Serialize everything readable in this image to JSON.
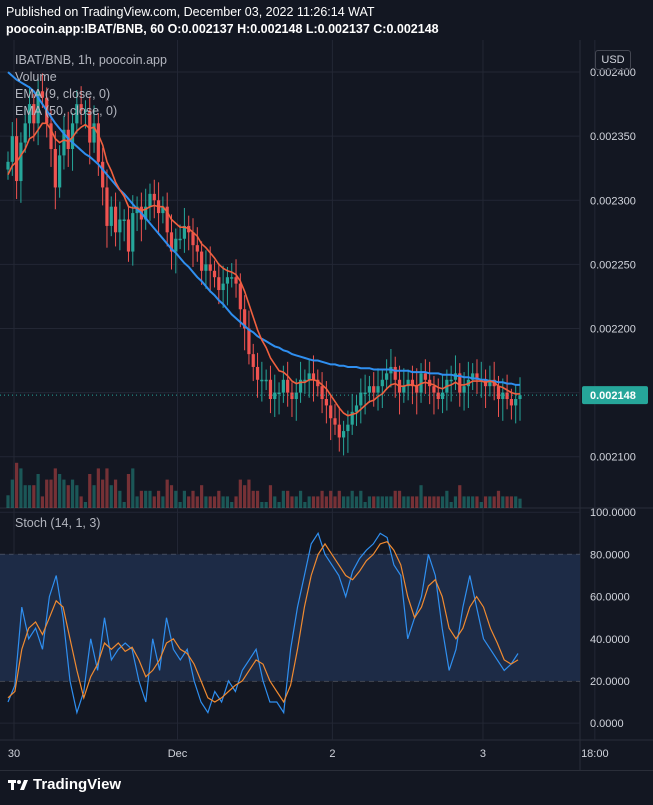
{
  "header": {
    "published": "Published on TradingView.com, December 03, 2022 11:26:14 WAT",
    "symbol_line": "poocoin.app:IBAT/BNB, 60 O:0.002137 H:0.002148 L:0.002137 C:0.002148"
  },
  "legend": {
    "title": "IBAT/BNB, 1h, poocoin.app",
    "volume": "Volume",
    "ema9": "EMA (9, close, 0)",
    "ema50": "EMA (50, close, 0)",
    "stoch": "Stoch (14, 1, 3)"
  },
  "currency_button": "USD",
  "brand": "TradingView",
  "colors": {
    "up": "#26a69a",
    "down": "#ef5350",
    "ema9": "#f0603f",
    "ema50": "#2f8ff0",
    "stoch_k": "#2f8ff0",
    "stoch_d": "#f08a30",
    "stoch_band": "#1d2b46"
  },
  "chart_data": [
    {
      "type": "candlestick",
      "title": "IBAT/BNB, 1h, poocoin.app",
      "ylim": [
        0.00206,
        0.002425
      ],
      "y_ticks": [
        "0.002400",
        "0.002350",
        "0.002300",
        "0.002250",
        "0.002200",
        "0.002150",
        "0.002100"
      ],
      "x_ticks": [
        "30",
        "Dec",
        "2",
        "3",
        "18:00"
      ],
      "last_price_label": "0.002148",
      "series": [
        {
          "name": "Volume",
          "type": "bar"
        },
        {
          "name": "EMA (9, close, 0)",
          "type": "line"
        },
        {
          "name": "EMA (50, close, 0)",
          "type": "line"
        }
      ],
      "close": [
        0.00233,
        0.00235,
        0.002315,
        0.002345,
        0.00236,
        0.002375,
        0.00236,
        0.002385,
        0.00238,
        0.00236,
        0.00234,
        0.00231,
        0.002335,
        0.002355,
        0.00234,
        0.00236,
        0.002375,
        0.00237,
        0.00237,
        0.002345,
        0.00236,
        0.00233,
        0.00231,
        0.00228,
        0.002295,
        0.002275,
        0.002285,
        0.002285,
        0.00226,
        0.00229,
        0.002295,
        0.002285,
        0.002295,
        0.002305,
        0.0023,
        0.00229,
        0.002295,
        0.002275,
        0.00226,
        0.00227,
        0.00227,
        0.00228,
        0.002275,
        0.002265,
        0.00226,
        0.002245,
        0.00225,
        0.002245,
        0.00224,
        0.00223,
        0.002235,
        0.00224,
        0.00224,
        0.002235,
        0.002215,
        0.0022,
        0.00218,
        0.00217,
        0.00216,
        0.00216,
        0.00216,
        0.002145,
        0.00215,
        0.00215,
        0.00216,
        0.00215,
        0.002145,
        0.00215,
        0.00216,
        0.00216,
        0.002165,
        0.00216,
        0.002155,
        0.002145,
        0.00214,
        0.00213,
        0.002125,
        0.002115,
        0.00212,
        0.002125,
        0.002135,
        0.00214,
        0.00215,
        0.00215,
        0.002155,
        0.00215,
        0.002155,
        0.00216,
        0.002165,
        0.00217,
        0.00216,
        0.00215,
        0.002155,
        0.00216,
        0.002155,
        0.00215,
        0.002165,
        0.00216,
        0.002155,
        0.00215,
        0.002145,
        0.00215,
        0.00216,
        0.00216,
        0.002165,
        0.00215,
        0.002155,
        0.00216,
        0.002165,
        0.00216,
        0.00216,
        0.002155,
        0.00216,
        0.002155,
        0.002145,
        0.00215,
        0.002145,
        0.00214,
        0.002145,
        0.002148
      ],
      "ema9": [
        0.00232,
        0.002327,
        0.00233,
        0.002335,
        0.00234,
        0.002348,
        0.00235,
        0.002355,
        0.00236,
        0.00236,
        0.002355,
        0.002348,
        0.002345,
        0.002347,
        0.002346,
        0.002349,
        0.002354,
        0.002357,
        0.002359,
        0.002356,
        0.002357,
        0.002351,
        0.002343,
        0.00233,
        0.002323,
        0.002314,
        0.002308,
        0.002303,
        0.002295,
        0.002294,
        0.002294,
        0.002292,
        0.002293,
        0.002295,
        0.002296,
        0.002295,
        0.002295,
        0.002291,
        0.002285,
        0.002282,
        0.002279,
        0.002279,
        0.002278,
        0.002275,
        0.002272,
        0.002266,
        0.002263,
        0.002259,
        0.002255,
        0.00225,
        0.002247,
        0.002245,
        0.002244,
        0.002242,
        0.002237,
        0.002229,
        0.002219,
        0.002209,
        0.002199,
        0.002191,
        0.002185,
        0.002177,
        0.002172,
        0.002167,
        0.002166,
        0.002163,
        0.002159,
        0.002157,
        0.002158,
        0.002158,
        0.00216,
        0.00216,
        0.002159,
        0.002156,
        0.002153,
        0.002148,
        0.002143,
        0.002138,
        0.002134,
        0.002132,
        0.002133,
        0.002134,
        0.002137,
        0.00214,
        0.002143,
        0.002144,
        0.002147,
        0.002149,
        0.002153,
        0.002156,
        0.002157,
        0.002155,
        0.002155,
        0.002156,
        0.002156,
        0.002155,
        0.002157,
        0.002158,
        0.002157,
        0.002156,
        0.002154,
        0.002153,
        0.002155,
        0.002156,
        0.002158,
        0.002156,
        0.002156,
        0.002157,
        0.002159,
        0.002159,
        0.002159,
        0.002158,
        0.002159,
        0.002158,
        0.002155,
        0.002154,
        0.002152,
        0.00215,
        0.002149,
        0.002149
      ],
      "ema50": [
        0.0024,
        0.002397,
        0.002394,
        0.002392,
        0.00239,
        0.002388,
        0.002385,
        0.00238,
        0.002375,
        0.00237,
        0.002365,
        0.00236,
        0.002356,
        0.002352,
        0.002348,
        0.002345,
        0.002342,
        0.002339,
        0.002336,
        0.002334,
        0.002331,
        0.002328,
        0.002324,
        0.00232,
        0.002316,
        0.002312,
        0.002308,
        0.002305,
        0.002301,
        0.002297,
        0.002293,
        0.00229,
        0.002286,
        0.002282,
        0.002278,
        0.002274,
        0.00227,
        0.002266,
        0.002262,
        0.002259,
        0.002255,
        0.002251,
        0.002248,
        0.002244,
        0.00224,
        0.002237,
        0.002233,
        0.002229,
        0.002226,
        0.002222,
        0.002219,
        0.002215,
        0.002211,
        0.002208,
        0.002205,
        0.002202,
        0.002199,
        0.002197,
        0.002194,
        0.002192,
        0.00219,
        0.002188,
        0.002186,
        0.002185,
        0.002183,
        0.002182,
        0.00218,
        0.002179,
        0.002178,
        0.002177,
        0.002176,
        0.002175,
        0.002175,
        0.002174,
        0.002173,
        0.002172,
        0.002172,
        0.002171,
        0.002171,
        0.00217,
        0.00217,
        0.00217,
        0.002169,
        0.002169,
        0.002169,
        0.002168,
        0.002168,
        0.002168,
        0.002168,
        0.002168,
        0.002167,
        0.002167,
        0.002167,
        0.002167,
        0.002166,
        0.002166,
        0.002166,
        0.002166,
        0.002165,
        0.002165,
        0.002165,
        0.002164,
        0.002164,
        0.002164,
        0.002163,
        0.002163,
        0.002162,
        0.002162,
        0.002161,
        0.002161,
        0.00216,
        0.00216,
        0.002159,
        0.002159,
        0.002158,
        0.002158,
        0.002157,
        0.002157,
        0.002156,
        0.002156
      ]
    },
    {
      "type": "line",
      "title": "Stoch (14, 1, 3)",
      "ylim": [
        -8,
        102
      ],
      "y_ticks": [
        "100.0000",
        "80.0000",
        "60.0000",
        "40.0000",
        "20.0000",
        "0.0000"
      ],
      "bands": [
        20,
        80
      ],
      "series": [
        {
          "name": "%K",
          "values": [
            10,
            18,
            55,
            40,
            45,
            35,
            60,
            70,
            50,
            20,
            5,
            15,
            40,
            25,
            50,
            30,
            35,
            38,
            35,
            20,
            10,
            40,
            25,
            50,
            35,
            30,
            35,
            20,
            10,
            5,
            15,
            10,
            20,
            15,
            25,
            30,
            35,
            20,
            10,
            10,
            5,
            35,
            55,
            70,
            85,
            90,
            80,
            75,
            70,
            60,
            72,
            78,
            82,
            85,
            90,
            88,
            75,
            70,
            40,
            50,
            60,
            80,
            70,
            45,
            25,
            35,
            55,
            70,
            55,
            40,
            35,
            30,
            25,
            28,
            33
          ]
        },
        {
          "name": "%D",
          "values": [
            12,
            15,
            35,
            45,
            48,
            42,
            50,
            58,
            55,
            40,
            25,
            12,
            22,
            28,
            38,
            35,
            38,
            34,
            36,
            30,
            22,
            25,
            30,
            38,
            40,
            35,
            33,
            28,
            20,
            12,
            10,
            12,
            15,
            18,
            20,
            25,
            30,
            28,
            20,
            15,
            10,
            18,
            35,
            55,
            70,
            80,
            85,
            80,
            75,
            70,
            68,
            72,
            77,
            80,
            85,
            86,
            82,
            75,
            60,
            50,
            55,
            65,
            68,
            60,
            45,
            40,
            45,
            55,
            60,
            55,
            45,
            38,
            30,
            28,
            30
          ]
        }
      ]
    }
  ]
}
